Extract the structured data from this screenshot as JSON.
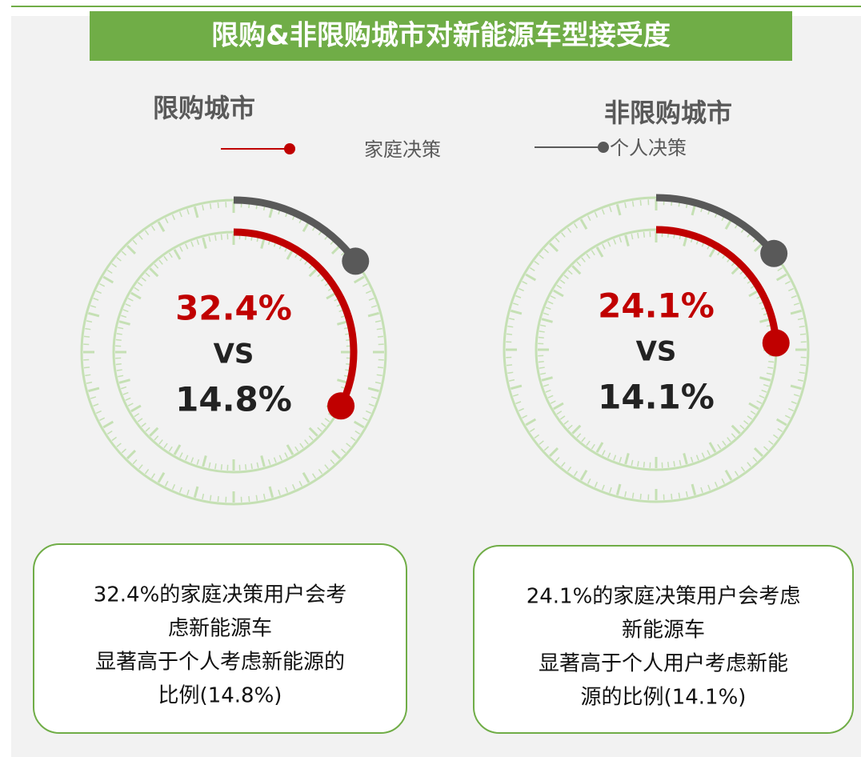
{
  "chart_data": {
    "type": "gauge",
    "title": "限购&非限购城市对新能源车型接受度",
    "categories": [
      "限购城市",
      "非限购城市"
    ],
    "series": [
      {
        "name": "家庭决策",
        "color": "#c00000",
        "values": [
          32.4,
          24.1
        ],
        "value_labels": [
          "32.4%",
          "24.1%"
        ]
      },
      {
        "name": "个人决策",
        "color": "#595959",
        "values": [
          14.8,
          14.1
        ],
        "value_labels": [
          "14.8%",
          "14.1%"
        ]
      }
    ],
    "vs_label": "VS",
    "ylim": [
      0,
      100
    ],
    "notes": [
      [
        "32.4%的家庭决策用户会考",
        "虑新能源车",
        "显著高于个人考虑新能源的",
        "比例(14.8%)"
      ],
      [
        "24.1%的家庭决策用户会考虑",
        "新能源车",
        "显著高于个人用户考虑新能",
        "源的比例(14.1%)"
      ]
    ]
  }
}
